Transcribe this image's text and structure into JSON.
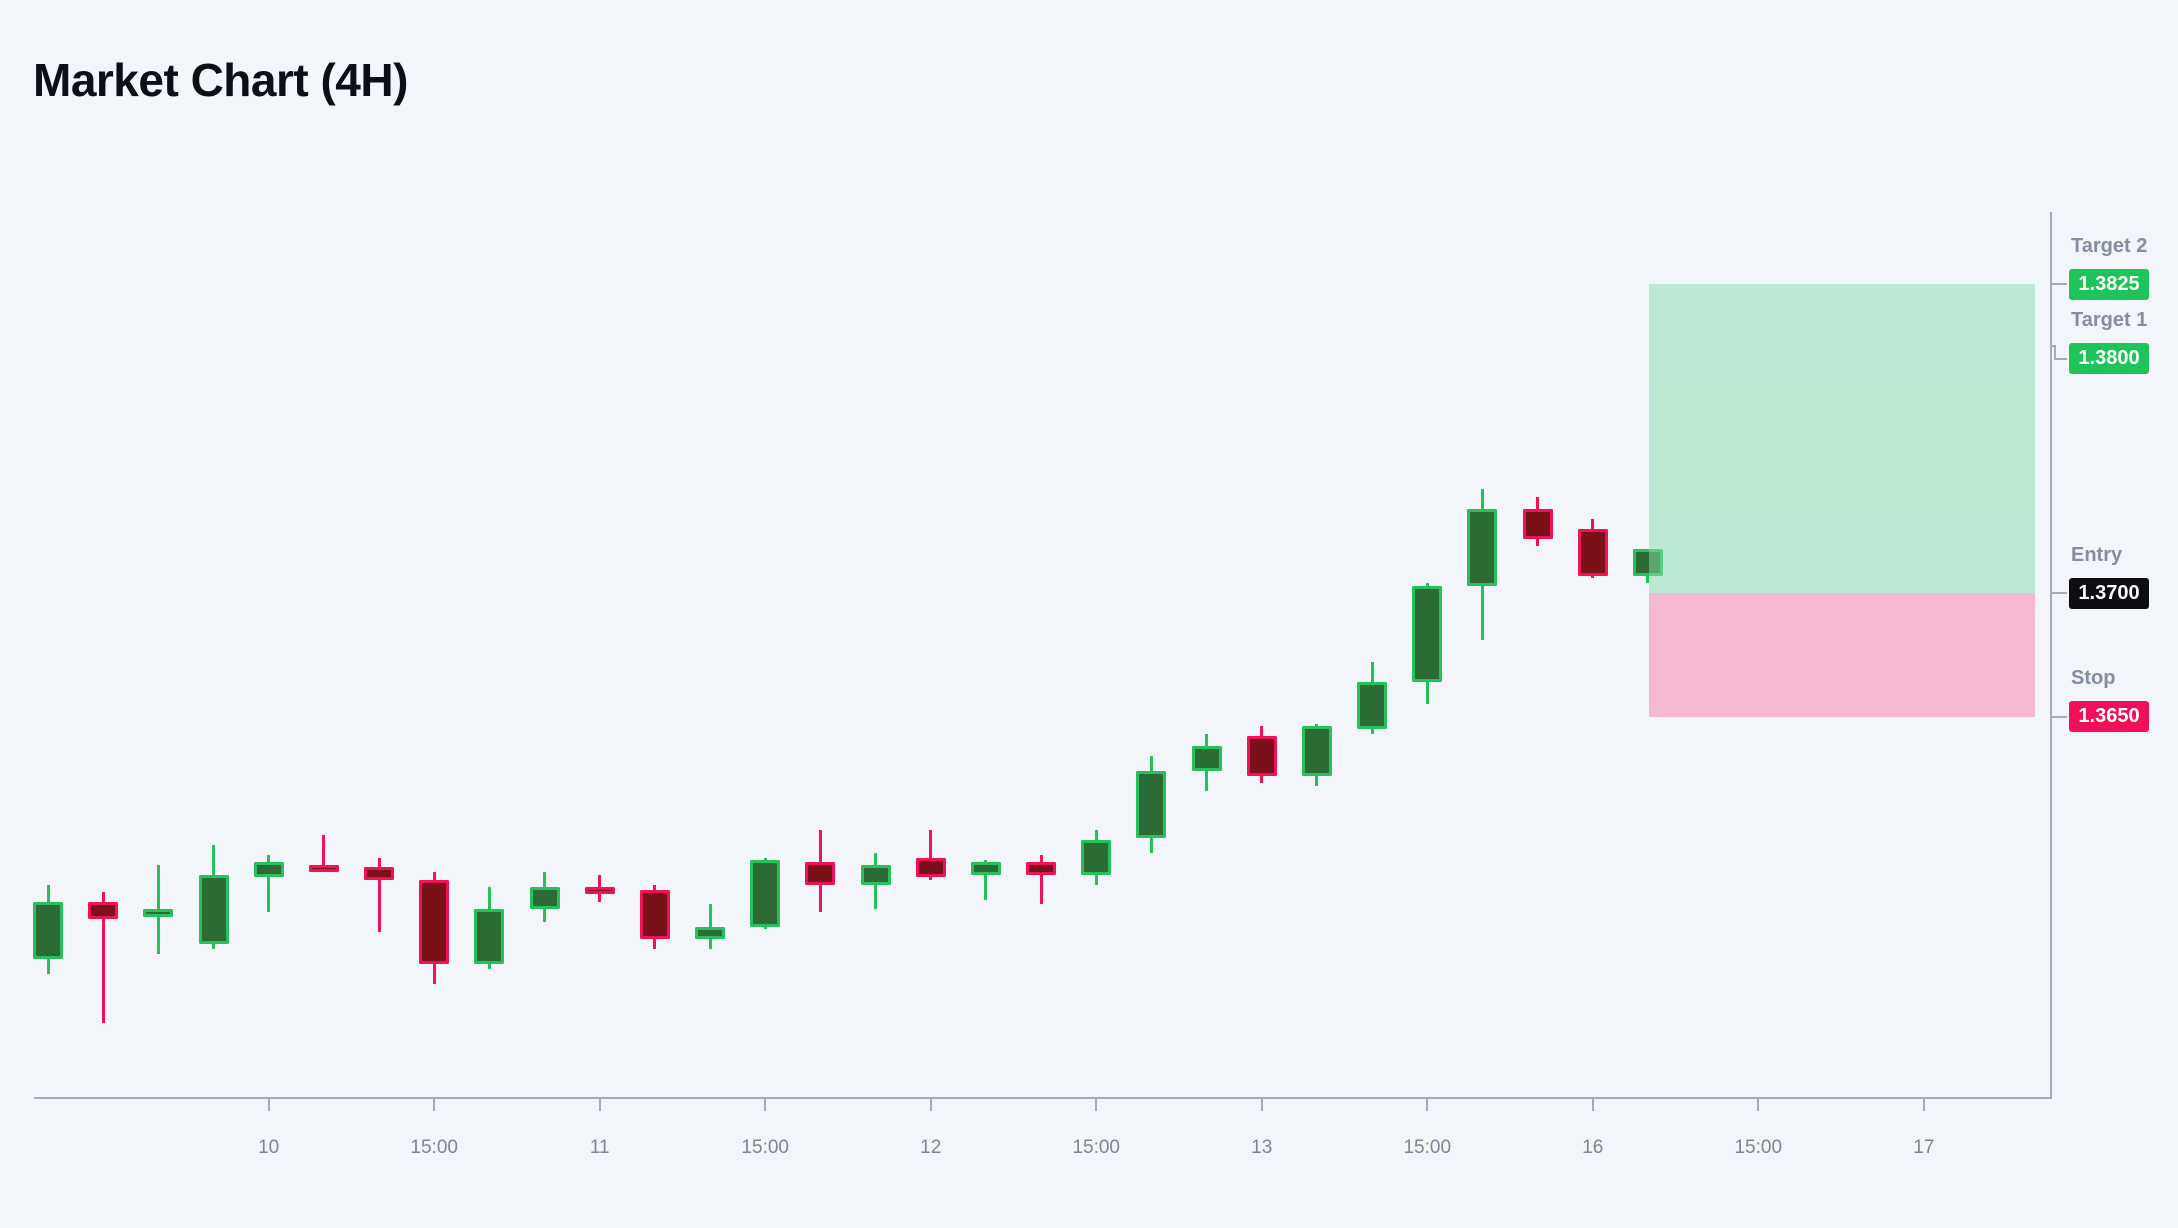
{
  "title": "Market Chart (4H)",
  "colors": {
    "background": "#f2f5fa",
    "title_text": "#0c0f15",
    "bull_border": "#27c05c",
    "bull_fill": "#2c6b36",
    "bear_border": "#f01157",
    "bear_fill": "#7a101a",
    "axis_line": "#a6abba",
    "tick_text": "#7d8398",
    "level_label_text": "#878da1",
    "badge_green": "#1ec45a",
    "badge_black": "#0d0d12",
    "badge_red": "#f00f58",
    "badge_text": "#ffffff",
    "profit_zone": "rgba(134,222,171,0.5)",
    "loss_zone": "rgba(250,122,165,0.5)"
  },
  "chart_data": {
    "type": "candlestick",
    "title": "Market Chart (4H)",
    "timeframe": "4H",
    "price_range": [
      1.3526,
      1.3825
    ],
    "grid": false,
    "x_axis": {
      "ticks": [
        {
          "candle_index": 4,
          "label": "10"
        },
        {
          "candle_index": 7,
          "label": "15:00"
        },
        {
          "candle_index": 10,
          "label": "11"
        },
        {
          "candle_index": 13,
          "label": "15:00"
        },
        {
          "candle_index": 16,
          "label": "12"
        },
        {
          "candle_index": 19,
          "label": "15:00"
        },
        {
          "candle_index": 22,
          "label": "13"
        },
        {
          "candle_index": 25,
          "label": "15:00"
        },
        {
          "candle_index": 28,
          "label": "16"
        },
        {
          "candle_index": 31,
          "label": "15:00"
        },
        {
          "candle_index": 34,
          "label": "17"
        }
      ]
    },
    "levels": [
      {
        "id": "target2",
        "label": "Target 2",
        "value": "1.3825",
        "price": 1.3825,
        "style": "green",
        "connector": "straight"
      },
      {
        "id": "target1",
        "label": "Target 1",
        "value": "1.3800",
        "price": 1.38,
        "style": "green",
        "connector": "elbow"
      },
      {
        "id": "entry",
        "label": "Entry",
        "value": "1.3700",
        "price": 1.37,
        "style": "black",
        "connector": "straight"
      },
      {
        "id": "stop",
        "label": "Stop",
        "value": "1.3650",
        "price": 1.365,
        "style": "red",
        "connector": "straight"
      }
    ],
    "zones": [
      {
        "id": "profit-zone",
        "top_price": 1.3825,
        "bottom_price": 1.37,
        "style": "profit"
      },
      {
        "id": "loss-zone",
        "top_price": 1.37,
        "bottom_price": 1.365,
        "style": "loss"
      }
    ],
    "candles": [
      {
        "o": 1.3552,
        "h": 1.3582,
        "l": 1.3546,
        "c": 1.3575
      },
      {
        "o": 1.3575,
        "h": 1.3579,
        "l": 1.3526,
        "c": 1.3568
      },
      {
        "o": 1.3569,
        "h": 1.359,
        "l": 1.3554,
        "c": 1.3572
      },
      {
        "o": 1.3558,
        "h": 1.3598,
        "l": 1.3556,
        "c": 1.3586
      },
      {
        "o": 1.3585,
        "h": 1.3594,
        "l": 1.3571,
        "c": 1.3591
      },
      {
        "o": 1.359,
        "h": 1.3602,
        "l": 1.3588,
        "c": 1.3588
      },
      {
        "o": 1.3589,
        "h": 1.3593,
        "l": 1.3563,
        "c": 1.3584
      },
      {
        "o": 1.3584,
        "h": 1.3587,
        "l": 1.3542,
        "c": 1.355
      },
      {
        "o": 1.355,
        "h": 1.3581,
        "l": 1.3548,
        "c": 1.3572
      },
      {
        "o": 1.3572,
        "h": 1.3587,
        "l": 1.3567,
        "c": 1.3581
      },
      {
        "o": 1.3581,
        "h": 1.3586,
        "l": 1.3575,
        "c": 1.358
      },
      {
        "o": 1.358,
        "h": 1.3582,
        "l": 1.3556,
        "c": 1.356
      },
      {
        "o": 1.356,
        "h": 1.3574,
        "l": 1.3556,
        "c": 1.3565
      },
      {
        "o": 1.3565,
        "h": 1.3593,
        "l": 1.3564,
        "c": 1.3592
      },
      {
        "o": 1.3591,
        "h": 1.3604,
        "l": 1.3571,
        "c": 1.3582
      },
      {
        "o": 1.3582,
        "h": 1.3595,
        "l": 1.3572,
        "c": 1.359
      },
      {
        "o": 1.3593,
        "h": 1.3604,
        "l": 1.3584,
        "c": 1.3585
      },
      {
        "o": 1.3586,
        "h": 1.3592,
        "l": 1.3576,
        "c": 1.3591
      },
      {
        "o": 1.3591,
        "h": 1.3594,
        "l": 1.3574,
        "c": 1.3586
      },
      {
        "o": 1.3586,
        "h": 1.3604,
        "l": 1.3582,
        "c": 1.36
      },
      {
        "o": 1.3601,
        "h": 1.3634,
        "l": 1.3595,
        "c": 1.3628
      },
      {
        "o": 1.3628,
        "h": 1.3643,
        "l": 1.362,
        "c": 1.3638
      },
      {
        "o": 1.3642,
        "h": 1.3646,
        "l": 1.3623,
        "c": 1.3626
      },
      {
        "o": 1.3626,
        "h": 1.3647,
        "l": 1.3622,
        "c": 1.3646
      },
      {
        "o": 1.3645,
        "h": 1.3672,
        "l": 1.3643,
        "c": 1.3664
      },
      {
        "o": 1.3664,
        "h": 1.3704,
        "l": 1.3655,
        "c": 1.3703
      },
      {
        "o": 1.3703,
        "h": 1.3742,
        "l": 1.3681,
        "c": 1.3734
      },
      {
        "o": 1.3734,
        "h": 1.3739,
        "l": 1.3719,
        "c": 1.3722
      },
      {
        "o": 1.3726,
        "h": 1.373,
        "l": 1.3706,
        "c": 1.3707
      },
      {
        "o": 1.3707,
        "h": 1.3718,
        "l": 1.3704,
        "c": 1.3718
      }
    ]
  }
}
